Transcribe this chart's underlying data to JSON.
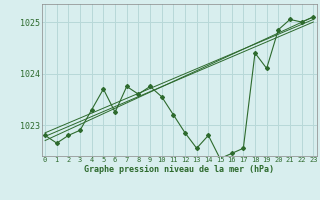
{
  "x": [
    0,
    1,
    2,
    3,
    4,
    5,
    6,
    7,
    8,
    9,
    10,
    11,
    12,
    13,
    14,
    15,
    16,
    17,
    18,
    19,
    20,
    21,
    22,
    23
  ],
  "y_line": [
    1022.8,
    1022.65,
    1022.8,
    1022.9,
    1023.3,
    1023.7,
    1023.25,
    1023.75,
    1023.6,
    1023.75,
    1023.55,
    1023.2,
    1022.85,
    1022.55,
    1022.8,
    1022.35,
    1022.45,
    1022.55,
    1024.4,
    1024.1,
    1024.85,
    1025.05,
    1025.0,
    1025.1
  ],
  "trend_starts": [
    1022.85,
    1022.78,
    1022.7
  ],
  "trend_ends": [
    1025.05,
    1025.0,
    1025.1
  ],
  "line_color": "#2d6a2d",
  "bg_color": "#d8eeee",
  "grid_color": "#b8d8d8",
  "xlabel": "Graphe pression niveau de la mer (hPa)",
  "ylim": [
    1022.4,
    1025.35
  ],
  "yticks": [
    1023,
    1024,
    1025
  ],
  "xticks": [
    0,
    1,
    2,
    3,
    4,
    5,
    6,
    7,
    8,
    9,
    10,
    11,
    12,
    13,
    14,
    15,
    16,
    17,
    18,
    19,
    20,
    21,
    22,
    23
  ]
}
